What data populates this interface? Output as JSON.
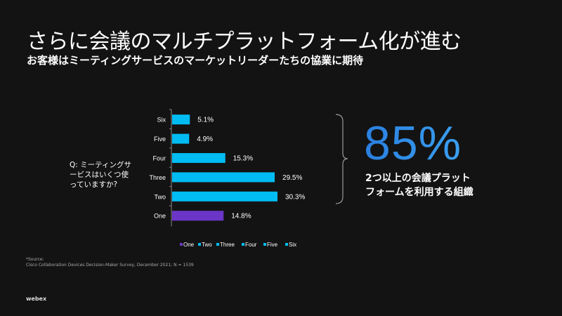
{
  "slide": {
    "title": "さらに会議のマルチプラットフォーム化が進む",
    "subtitle": "お客様はミーティングサービスのマーケットリーダーたちの協業に期待",
    "question": "Q: ミーティングサービスはいくつ使っていますか?",
    "highlight_value": "85%",
    "highlight_desc_line1": "2つ以上の会議プラット",
    "highlight_desc_line2": "フォームを利用する組織",
    "source_label": "*Source:",
    "source_text": "Cisco Collaboration Devices Decision-Maker Survey, December 2021; N = 1539",
    "logo": "webex"
  },
  "chart_data": {
    "type": "bar",
    "orientation": "horizontal",
    "categories": [
      "Six",
      "Five",
      "Four",
      "Three",
      "Two",
      "One"
    ],
    "values": [
      5.1,
      4.9,
      15.3,
      29.5,
      30.3,
      14.8
    ],
    "labels": [
      "5.1%",
      "4.9%",
      "15.3%",
      "29.5%",
      "30.3%",
      "14.8%"
    ],
    "colors": [
      "#00bcf2",
      "#00bcf2",
      "#00bcf2",
      "#00bcf2",
      "#00bcf2",
      "#6b35c8"
    ],
    "unit": "%",
    "legend": [
      {
        "label": "One",
        "color": "#6b35c8"
      },
      {
        "label": "Two",
        "color": "#00bcf2"
      },
      {
        "label": "Three",
        "color": "#00bcf2"
      },
      {
        "label": "Four",
        "color": "#00bcf2"
      },
      {
        "label": "Five",
        "color": "#00bcf2"
      },
      {
        "label": "Six",
        "color": "#00bcf2"
      }
    ],
    "legend_position": "bottom",
    "grid": false
  }
}
